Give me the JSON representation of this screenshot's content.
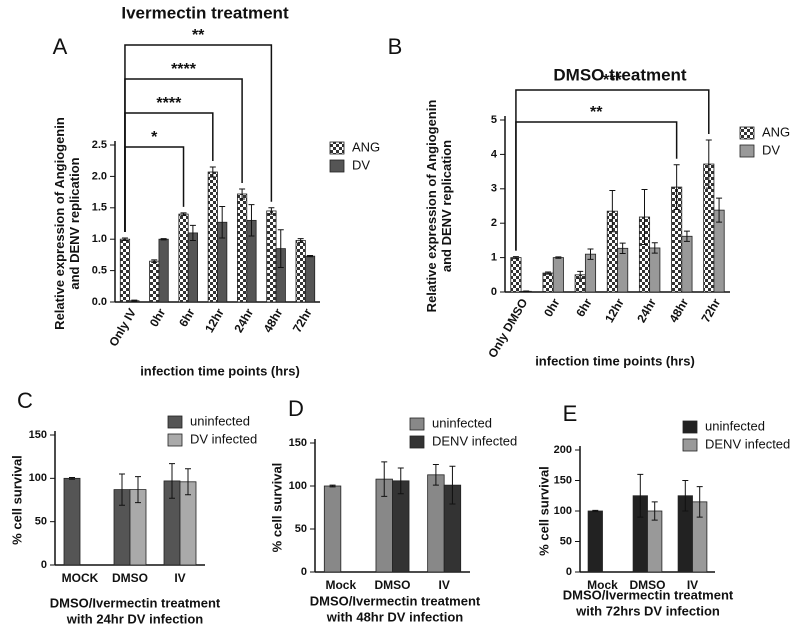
{
  "chart_data": [
    {
      "type": "bar",
      "panel": "A",
      "title": "Ivermectin treatment",
      "ylabel": [
        "Relative expression of Angiogenin",
        "and DENV replication"
      ],
      "xlabel": [
        "infection time points (hrs)"
      ],
      "categories": [
        "Only IV",
        "0hr",
        "6hr",
        "12hr",
        "24hr",
        "48hr",
        "72hr"
      ],
      "series": [
        {
          "name": "ANG",
          "color": "#ffffff",
          "pattern": "checker",
          "values": [
            1.0,
            0.65,
            1.4,
            2.07,
            1.72,
            1.45,
            0.98
          ],
          "errors": [
            0.02,
            0.02,
            0.02,
            0.08,
            0.08,
            0.05,
            0.03
          ]
        },
        {
          "name": "DV",
          "color": "#555555",
          "values": [
            0.02,
            1.0,
            1.1,
            1.27,
            1.3,
            0.85,
            0.73
          ],
          "errors": [
            0.01,
            0.01,
            0.12,
            0.25,
            0.25,
            0.3,
            0.01
          ]
        }
      ],
      "ylim": [
        0,
        2.5
      ],
      "yticks": [
        {
          "value": 0,
          "label": "0.0"
        },
        0.5,
        {
          "value": 1,
          "label": "1.0"
        },
        1.5,
        {
          "value": 2,
          "label": "2.0"
        },
        2.5
      ],
      "annotations": [
        {
          "label": "*",
          "from": "Only IV",
          "to": "6hr"
        },
        {
          "label": "****",
          "from": "Only IV",
          "to": "12hr"
        },
        {
          "label": "****",
          "from": "Only IV",
          "to": "24hr"
        },
        {
          "label": "**",
          "from": "Only IV",
          "to": "48hr"
        }
      ]
    },
    {
      "type": "bar",
      "panel": "B",
      "title": "DMSO treatment",
      "ylabel": [
        "Relative expression of Angiogenin",
        "and DENV replication"
      ],
      "xlabel": [
        "infection time points (hrs)"
      ],
      "categories": [
        "Only DMSO",
        "0hr",
        "6hr",
        "12hr",
        "24hr",
        "48hr",
        "72hr"
      ],
      "series": [
        {
          "name": "ANG",
          "color": "#ffffff",
          "pattern": "checker",
          "values": [
            1.0,
            0.55,
            0.5,
            2.35,
            2.18,
            3.05,
            3.72
          ],
          "errors": [
            0.03,
            0.03,
            0.1,
            0.6,
            0.8,
            0.65,
            0.7
          ]
        },
        {
          "name": "DV",
          "color": "#999999",
          "values": [
            0.02,
            1.0,
            1.1,
            1.27,
            1.28,
            1.62,
            2.38
          ],
          "errors": [
            0.01,
            0.02,
            0.15,
            0.15,
            0.15,
            0.15,
            0.35
          ]
        }
      ],
      "ylim": [
        0,
        5
      ],
      "yticks": [
        0,
        1,
        2,
        3,
        4,
        5
      ],
      "annotations": [
        {
          "label": "**",
          "from": "Only DMSO",
          "to": "48hr"
        },
        {
          "label": "***",
          "from": "Only DMSO",
          "to": "72hr"
        }
      ]
    },
    {
      "type": "bar",
      "panel": "C",
      "ylabel": [
        "% cell survival"
      ],
      "xlabel": [
        "DMSO/Ivermectin treatment",
        "with 24hr DV infection"
      ],
      "categories": [
        "MOCK",
        "DMSO",
        "IV"
      ],
      "series": [
        {
          "name": "uninfected",
          "color": "#555555",
          "values": [
            100,
            87,
            97
          ],
          "errors": [
            1,
            18,
            20
          ]
        },
        {
          "name": "DV infected",
          "color": "#aaaaaa",
          "values": [
            null,
            87,
            96
          ],
          "errors": [
            null,
            15,
            15
          ]
        }
      ],
      "ylim": [
        0,
        150
      ],
      "yticks": [
        0,
        50,
        100,
        150
      ]
    },
    {
      "type": "bar",
      "panel": "D",
      "ylabel": [
        "% cell survival"
      ],
      "xlabel": [
        "DMSO/Ivermectin treatment",
        "with 48hr DV infection"
      ],
      "categories": [
        "Mock",
        "DMSO",
        "IV"
      ],
      "series": [
        {
          "name": "uninfected",
          "color": "#888888",
          "values": [
            100,
            108,
            113
          ],
          "errors": [
            1,
            20,
            12
          ]
        },
        {
          "name": "DENV infected",
          "color": "#333333",
          "values": [
            null,
            106,
            101
          ],
          "errors": [
            null,
            15,
            22
          ]
        }
      ],
      "ylim": [
        0,
        150
      ],
      "yticks": [
        0,
        50,
        100,
        150
      ]
    },
    {
      "type": "bar",
      "panel": "E",
      "ylabel": [
        "% cell survival"
      ],
      "xlabel": [
        "DMSO/Ivermectin treatment",
        "with 72hrs DV infection"
      ],
      "categories": [
        "Mock",
        "DMSO",
        "IV"
      ],
      "series": [
        {
          "name": "uninfected",
          "color": "#222222",
          "values": [
            100,
            125,
            125
          ],
          "errors": [
            1,
            35,
            25
          ]
        },
        {
          "name": "DENV infected",
          "color": "#999999",
          "values": [
            null,
            100,
            115
          ],
          "errors": [
            null,
            15,
            25
          ]
        }
      ],
      "ylim": [
        0,
        200
      ],
      "yticks": [
        0,
        50,
        100,
        150,
        200
      ]
    }
  ]
}
